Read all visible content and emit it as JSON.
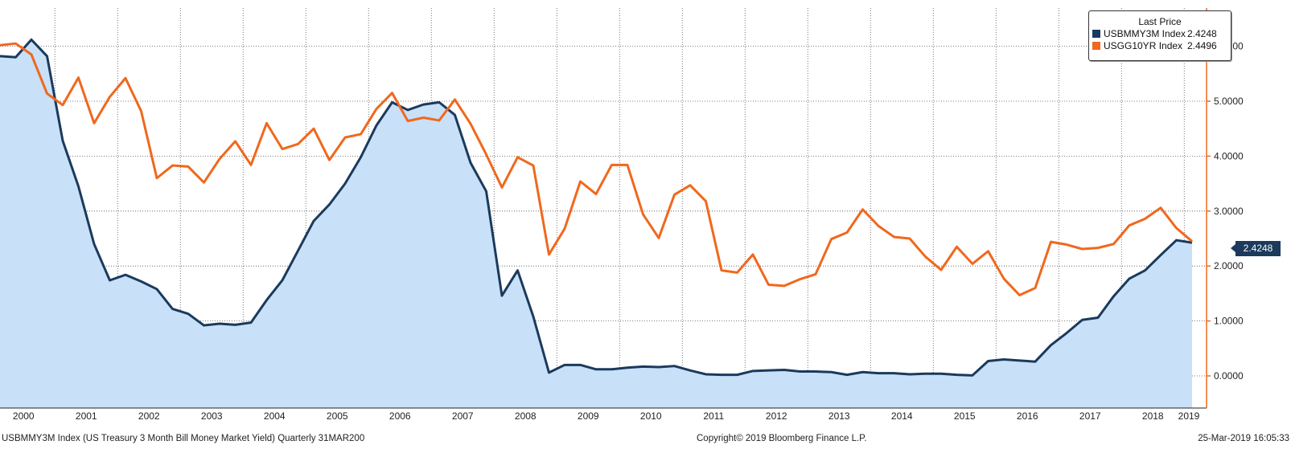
{
  "chart_data": {
    "type": "area",
    "x": [
      "2000Q1",
      "2000Q2",
      "2000Q3",
      "2000Q4",
      "2001Q1",
      "2001Q2",
      "2001Q3",
      "2001Q4",
      "2002Q1",
      "2002Q2",
      "2002Q3",
      "2002Q4",
      "2003Q1",
      "2003Q2",
      "2003Q3",
      "2003Q4",
      "2004Q1",
      "2004Q2",
      "2004Q3",
      "2004Q4",
      "2005Q1",
      "2005Q2",
      "2005Q3",
      "2005Q4",
      "2006Q1",
      "2006Q2",
      "2006Q3",
      "2006Q4",
      "2007Q1",
      "2007Q2",
      "2007Q3",
      "2007Q4",
      "2008Q1",
      "2008Q2",
      "2008Q3",
      "2008Q4",
      "2009Q1",
      "2009Q2",
      "2009Q3",
      "2009Q4",
      "2010Q1",
      "2010Q2",
      "2010Q3",
      "2010Q4",
      "2011Q1",
      "2011Q2",
      "2011Q3",
      "2011Q4",
      "2012Q1",
      "2012Q2",
      "2012Q3",
      "2012Q4",
      "2013Q1",
      "2013Q2",
      "2013Q3",
      "2013Q4",
      "2014Q1",
      "2014Q2",
      "2014Q3",
      "2014Q4",
      "2015Q1",
      "2015Q2",
      "2015Q3",
      "2015Q4",
      "2016Q1",
      "2016Q2",
      "2016Q3",
      "2016Q4",
      "2017Q1",
      "2017Q2",
      "2017Q3",
      "2017Q4",
      "2018Q1",
      "2018Q2",
      "2018Q3",
      "2018Q4",
      "2019Q1"
    ],
    "series": [
      {
        "name": "USBMMY3M Index",
        "style": "area",
        "color": "#1b3a5c",
        "fill": "#c8e1f8",
        "values": [
          5.82,
          5.8,
          6.12,
          5.82,
          4.28,
          3.45,
          2.4,
          1.74,
          1.84,
          1.72,
          1.58,
          1.22,
          1.13,
          0.92,
          0.95,
          0.93,
          0.97,
          1.38,
          1.74,
          2.28,
          2.82,
          3.12,
          3.5,
          3.98,
          4.56,
          4.98,
          4.84,
          4.94,
          4.98,
          4.75,
          3.88,
          3.36,
          1.46,
          1.92,
          1.08,
          0.06,
          0.2,
          0.2,
          0.12,
          0.12,
          0.15,
          0.17,
          0.16,
          0.18,
          0.1,
          0.03,
          0.02,
          0.02,
          0.09,
          0.1,
          0.11,
          0.08,
          0.08,
          0.07,
          0.02,
          0.07,
          0.05,
          0.05,
          0.03,
          0.04,
          0.04,
          0.02,
          0.01,
          0.27,
          0.3,
          0.28,
          0.26,
          0.56,
          0.78,
          1.02,
          1.06,
          1.45,
          1.77,
          1.92,
          2.2,
          2.47,
          2.4248
        ]
      },
      {
        "name": "USGG10YR Index",
        "style": "line",
        "color": "#f0681d",
        "values": [
          6.02,
          6.05,
          5.85,
          5.14,
          4.93,
          5.43,
          4.6,
          5.08,
          5.42,
          4.82,
          3.6,
          3.83,
          3.81,
          3.52,
          3.95,
          4.27,
          3.84,
          4.6,
          4.13,
          4.22,
          4.5,
          3.93,
          4.34,
          4.4,
          4.86,
          5.15,
          4.64,
          4.7,
          4.65,
          5.03,
          4.59,
          4.03,
          3.43,
          3.98,
          3.83,
          2.21,
          2.68,
          3.54,
          3.31,
          3.84,
          3.84,
          2.94,
          2.51,
          3.3,
          3.47,
          3.18,
          1.92,
          1.88,
          2.21,
          1.66,
          1.64,
          1.76,
          1.85,
          2.49,
          2.61,
          3.03,
          2.73,
          2.53,
          2.5,
          2.17,
          1.93,
          2.35,
          2.04,
          2.27,
          1.77,
          1.47,
          1.6,
          2.44,
          2.39,
          2.31,
          2.33,
          2.4,
          2.74,
          2.86,
          3.06,
          2.69,
          2.4496
        ]
      }
    ],
    "x_tick_labels": [
      "2000",
      "2001",
      "2002",
      "2003",
      "2004",
      "2005",
      "2006",
      "2007",
      "2008",
      "2009",
      "2010",
      "2011",
      "2012",
      "2013",
      "2014",
      "2015",
      "2016",
      "2017",
      "2018",
      "2019"
    ],
    "y_tick_labels": [
      "6.0000",
      "5.0000",
      "4.0000",
      "3.0000",
      "2.0000",
      "1.0000",
      "0.0000"
    ],
    "y_ticks": [
      6,
      5,
      4,
      3,
      2,
      1,
      0
    ],
    "ylim": [
      -0.55,
      6.75
    ],
    "y_axis_side": "right",
    "grid": true,
    "legend_placement": "top-right",
    "colors": {
      "axis_right": "#f0681d"
    }
  },
  "legend": {
    "title": "Last Price",
    "entries": [
      {
        "name": "USBMMY3M Index",
        "value": "2.4248",
        "color": "#1b3a5c"
      },
      {
        "name": "USGG10YR Index",
        "value": "2.4496",
        "color": "#f0681d"
      }
    ]
  },
  "last_value_tag": "2.4248",
  "footer": {
    "left": "USBMMY3M Index (US Treasury 3 Month Bill Money Market Yield)  Quarterly 31MAR200",
    "center": "Copyright© 2019 Bloomberg Finance L.P.",
    "right": "25-Mar-2019 16:05:33"
  }
}
